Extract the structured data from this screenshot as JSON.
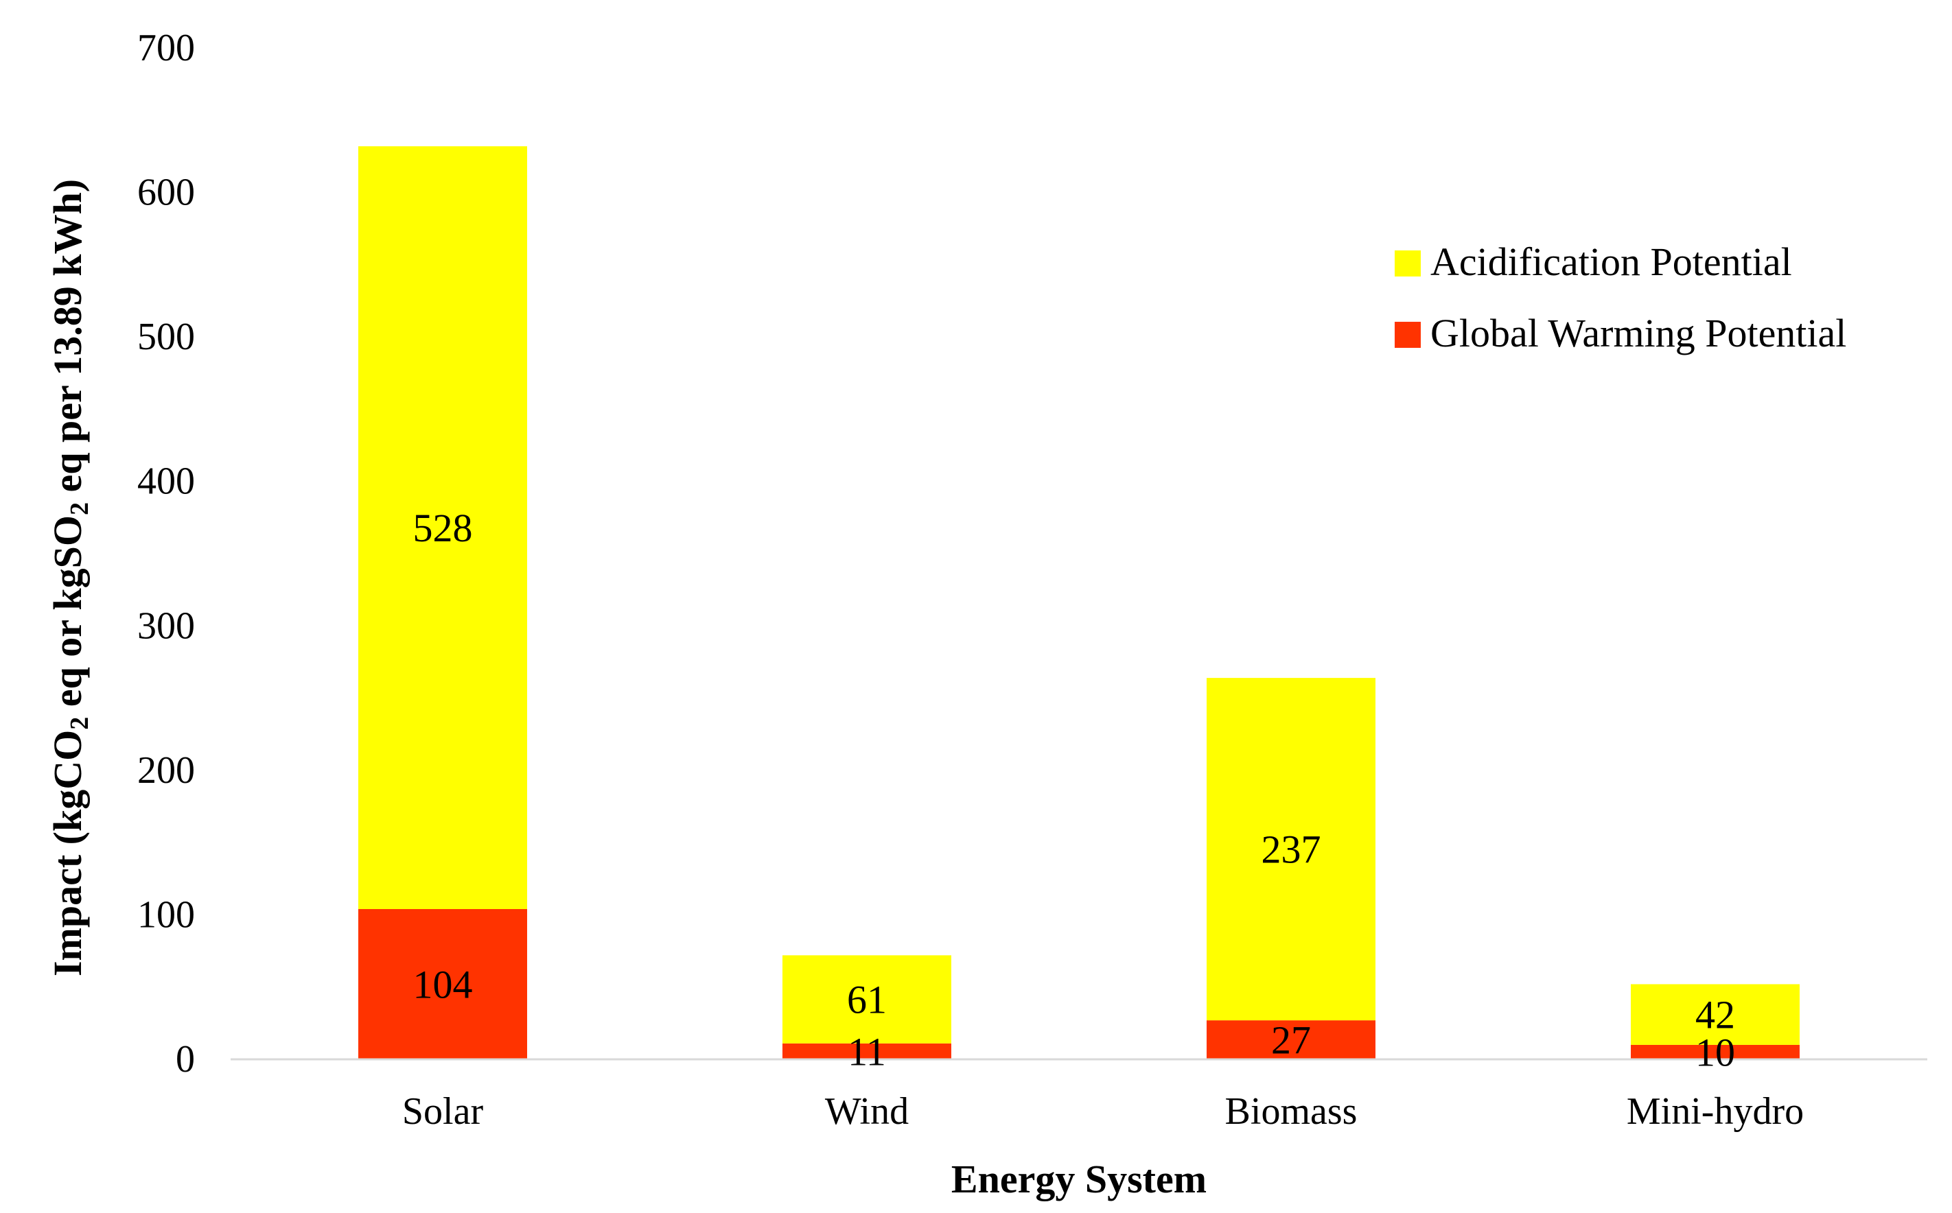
{
  "colors": {
    "acidification": "#FFFF00",
    "global_warming": "#FF3300",
    "axis_line": "#d9d9d9",
    "text": "#000000"
  },
  "chart_data": {
    "type": "bar",
    "stacked": true,
    "title": "",
    "categories": [
      "Solar",
      "Wind",
      "Biomass",
      "Mini-hydro"
    ],
    "series": [
      {
        "name": "Global Warming Potential",
        "values": [
          104,
          11,
          27,
          10
        ]
      },
      {
        "name": "Acidification Potential",
        "values": [
          528,
          61,
          237,
          42
        ]
      }
    ],
    "legend_order": [
      "Acidification Potential",
      "Global Warming Potential"
    ],
    "legend_position": "right",
    "xlabel": "Energy System",
    "ylabel": {
      "parts": [
        "Impact (kgCO",
        "2",
        " eq or  kgSO",
        "2",
        " eq per 13.89 kWh)"
      ]
    },
    "ylim": [
      0,
      700
    ],
    "yticks": [
      "0",
      "100",
      "200",
      "300",
      "400",
      "500",
      "600",
      "700"
    ],
    "grid": false
  }
}
